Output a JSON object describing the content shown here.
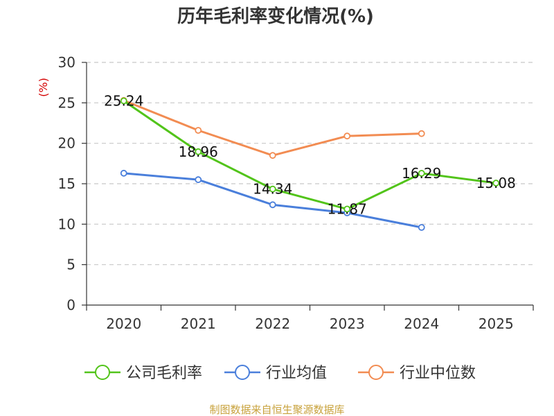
{
  "chart_data": {
    "type": "line",
    "title": "历年毛利率变化情况(%)",
    "ylabel": "(%)",
    "xlabel": "",
    "categories": [
      "2020",
      "2021",
      "2022",
      "2023",
      "2024",
      "2025"
    ],
    "ylim": [
      0,
      30
    ],
    "yticks": [
      0,
      5,
      10,
      15,
      20,
      25,
      30
    ],
    "grid": true,
    "legend_position": "bottom",
    "series": [
      {
        "name": "公司毛利率",
        "color": "#52c41a",
        "values": [
          25.24,
          18.96,
          14.34,
          11.87,
          16.29,
          15.08
        ],
        "show_labels": true
      },
      {
        "name": "行业均值",
        "color": "#4a7fdb",
        "values": [
          16.3,
          15.5,
          12.4,
          11.4,
          9.6,
          null
        ],
        "show_labels": false
      },
      {
        "name": "行业中位数",
        "color": "#f28c52",
        "values": [
          25.3,
          21.6,
          18.5,
          20.9,
          21.2,
          null
        ],
        "show_labels": false
      }
    ],
    "data_labels": [
      "25.24",
      "18.96",
      "14.34",
      "11.87",
      "16.29",
      "15.08"
    ]
  },
  "source": "制图数据来自恒生聚源数据库"
}
